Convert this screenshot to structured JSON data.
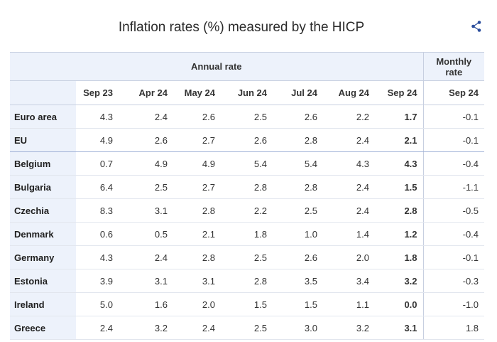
{
  "title": "Inflation rates (%) measured by the HICP",
  "share_icon": "share-icon",
  "header": {
    "annual_label": "Annual rate",
    "monthly_label": "Monthly rate",
    "annual_months": [
      "Sep 23",
      "Apr 24",
      "May 24",
      "Jun 24",
      "Jul 24",
      "Aug 24",
      "Sep 24"
    ],
    "monthly_month": "Sep 24"
  },
  "chart_data": {
    "type": "table",
    "title": "Inflation rates (%) measured by the HICP",
    "columns": [
      "Sep 23",
      "Apr 24",
      "May 24",
      "Jun 24",
      "Jul 24",
      "Aug 24",
      "Sep 24",
      "Sep 24 (monthly)"
    ],
    "rows": [
      {
        "country": "Euro area",
        "annual": [
          "4.3",
          "2.4",
          "2.6",
          "2.5",
          "2.6",
          "2.2",
          "1.7"
        ],
        "monthly": "-0.1"
      },
      {
        "country": "EU",
        "annual": [
          "4.9",
          "2.6",
          "2.7",
          "2.6",
          "2.8",
          "2.4",
          "2.1"
        ],
        "monthly": "-0.1"
      },
      {
        "country": "Belgium",
        "annual": [
          "0.7",
          "4.9",
          "4.9",
          "5.4",
          "5.4",
          "4.3",
          "4.3"
        ],
        "monthly": "-0.4"
      },
      {
        "country": "Bulgaria",
        "annual": [
          "6.4",
          "2.5",
          "2.7",
          "2.8",
          "2.8",
          "2.4",
          "1.5"
        ],
        "monthly": "-1.1"
      },
      {
        "country": "Czechia",
        "annual": [
          "8.3",
          "3.1",
          "2.8",
          "2.2",
          "2.5",
          "2.4",
          "2.8"
        ],
        "monthly": "-0.5"
      },
      {
        "country": "Denmark",
        "annual": [
          "0.6",
          "0.5",
          "2.1",
          "1.8",
          "1.0",
          "1.4",
          "1.2"
        ],
        "monthly": "-0.4"
      },
      {
        "country": "Germany",
        "annual": [
          "4.3",
          "2.4",
          "2.8",
          "2.5",
          "2.6",
          "2.0",
          "1.8"
        ],
        "monthly": "-0.1"
      },
      {
        "country": "Estonia",
        "annual": [
          "3.9",
          "3.1",
          "3.1",
          "2.8",
          "3.5",
          "3.4",
          "3.2"
        ],
        "monthly": "-0.3"
      },
      {
        "country": "Ireland",
        "annual": [
          "5.0",
          "1.6",
          "2.0",
          "1.5",
          "1.5",
          "1.1",
          "0.0"
        ],
        "monthly": "-1.0"
      },
      {
        "country": "Greece",
        "annual": [
          "2.4",
          "3.2",
          "2.4",
          "2.5",
          "3.0",
          "3.2",
          "3.1"
        ],
        "monthly": "1.8"
      }
    ]
  }
}
